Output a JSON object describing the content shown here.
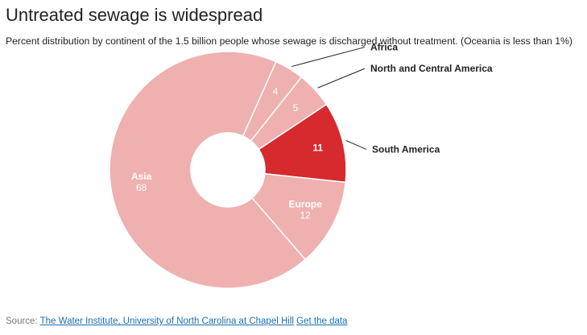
{
  "header": {
    "title": "Untreated sewage is widespread",
    "subtitle": "Percent distribution by continent of the 1.5 billion people whose sewage is discharged without treatment. (Oceania is less than 1%)"
  },
  "footer": {
    "source_prefix": "Source:",
    "source_link": "The Water Institute, University of North Carolina at Chapel Hill",
    "data_link": "Get the data"
  },
  "colors": {
    "base_slice": "#efb0b0",
    "highlight_slice": "#d62a2e",
    "slice_border": "#ffffff",
    "leader_line": "#222222",
    "link": "#1a6fb3"
  },
  "chart_data": {
    "type": "pie",
    "donut": true,
    "title": "Untreated sewage is widespread",
    "subtitle": "Percent distribution by continent of the 1.5 billion people whose sewage is discharged without treatment. (Oceania is less than 1%)",
    "unit": "percent",
    "slices": [
      {
        "label": "Africa",
        "value": 4,
        "label_position": "outside",
        "highlight": false
      },
      {
        "label": "North and Central America",
        "value": 5,
        "label_position": "outside",
        "highlight": false
      },
      {
        "label": "South America",
        "value": 11,
        "label_position": "outside",
        "highlight": true
      },
      {
        "label": "Europe",
        "value": 12,
        "label_position": "inside",
        "highlight": false
      },
      {
        "label": "Asia",
        "value": 68,
        "label_position": "inside",
        "highlight": false
      }
    ]
  }
}
